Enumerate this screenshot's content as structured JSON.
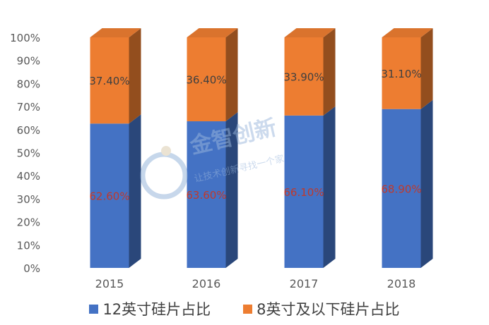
{
  "chart_data": {
    "type": "bar",
    "stacked": true,
    "style": "3d",
    "categories": [
      "2015",
      "2016",
      "2017",
      "2018"
    ],
    "series": [
      {
        "name": "12英寸硅片占比",
        "values": [
          62.6,
          63.6,
          66.1,
          68.9
        ],
        "labels": [
          "62.60%",
          "63.60%",
          "66.10%",
          "68.90%"
        ],
        "color": "#4472C4"
      },
      {
        "name": "8英寸及以下硅片占比",
        "values": [
          37.4,
          36.4,
          33.9,
          31.1
        ],
        "labels": [
          "37.40%",
          "36.40%",
          "33.90%",
          "31.10%"
        ],
        "color": "#ED7D31"
      }
    ],
    "yticks": [
      "0%",
      "10%",
      "20%",
      "30%",
      "40%",
      "50%",
      "60%",
      "70%",
      "80%",
      "90%",
      "100%"
    ],
    "ylim": [
      0,
      100
    ],
    "grid": false,
    "legend_position": "bottom",
    "label_colors": {
      "lower": "#C0392B",
      "upper": "#404040"
    }
  },
  "watermark": {
    "line1": "金智创新",
    "line2": "让技术创新寻找一个家"
  }
}
